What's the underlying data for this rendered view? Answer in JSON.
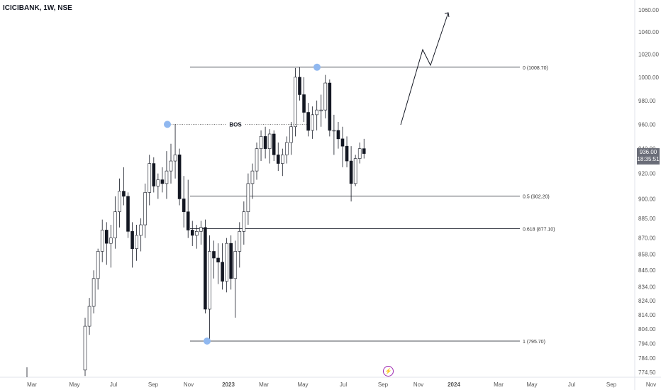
{
  "header": {
    "symbol_title": "ICICIBANK, 1W, NSE"
  },
  "price_badge": {
    "price": "936.00",
    "countdown": "18:35:51"
  },
  "event_icon": "lightning-icon",
  "colors": {
    "candle_up": "#ffffff",
    "candle_down": "#131722",
    "stroke": "#131722",
    "marker": "#90b8f0",
    "axis_text": "#555555",
    "arrow": "#131722"
  },
  "chart_data": {
    "type": "candlestick",
    "title": "ICICIBANK, 1W, NSE",
    "y_scale": "log",
    "ylim": [
      770,
      1070
    ],
    "y_ticks": [
      1060,
      1040,
      1020,
      1000,
      980,
      960,
      940,
      920,
      900,
      885,
      870,
      858,
      846,
      834,
      824,
      814,
      804,
      794,
      784,
      774.5
    ],
    "y_tick_labels": [
      "1060.00",
      "1040.00",
      "1020.00",
      "1000.00",
      "980.00",
      "960.00",
      "940.00",
      "920.00",
      "900.00",
      "885.00",
      "870.00",
      "858.00",
      "846.00",
      "834.00",
      "824.00",
      "814.00",
      "804.00",
      "794.00",
      "784.00",
      "774.50"
    ],
    "x_labels": [
      "Mar",
      "May",
      "Jul",
      "Sep",
      "Nov",
      "2023",
      "Mar",
      "May",
      "Jul",
      "Sep",
      "Nov",
      "2024",
      "Mar",
      "May",
      "Jul",
      "Sep",
      "Nov"
    ],
    "fib_levels": [
      {
        "label": "0 (1008.70)",
        "value": 1008.7
      },
      {
        "label": "0.5 (902.20)",
        "value": 902.2
      },
      {
        "label": "0.618 (877.10)",
        "value": 877.1
      },
      {
        "label": "1 (795.70)",
        "value": 795.7
      }
    ],
    "bos": {
      "label": "BOS",
      "value": 960
    },
    "candles": [
      {
        "o": 776,
        "h": 812,
        "l": 772,
        "c": 806
      },
      {
        "o": 806,
        "h": 826,
        "l": 800,
        "c": 820
      },
      {
        "o": 820,
        "h": 846,
        "l": 815,
        "c": 840
      },
      {
        "o": 840,
        "h": 862,
        "l": 832,
        "c": 860
      },
      {
        "o": 860,
        "h": 884,
        "l": 852,
        "c": 876
      },
      {
        "o": 876,
        "h": 882,
        "l": 850,
        "c": 866
      },
      {
        "o": 866,
        "h": 880,
        "l": 848,
        "c": 870
      },
      {
        "o": 870,
        "h": 902,
        "l": 862,
        "c": 890
      },
      {
        "o": 890,
        "h": 916,
        "l": 878,
        "c": 906
      },
      {
        "o": 906,
        "h": 925,
        "l": 895,
        "c": 902
      },
      {
        "o": 902,
        "h": 905,
        "l": 870,
        "c": 875
      },
      {
        "o": 875,
        "h": 882,
        "l": 848,
        "c": 862
      },
      {
        "o": 862,
        "h": 880,
        "l": 853,
        "c": 872
      },
      {
        "o": 872,
        "h": 885,
        "l": 860,
        "c": 880
      },
      {
        "o": 880,
        "h": 912,
        "l": 870,
        "c": 905
      },
      {
        "o": 905,
        "h": 935,
        "l": 895,
        "c": 928
      },
      {
        "o": 928,
        "h": 933,
        "l": 905,
        "c": 910
      },
      {
        "o": 910,
        "h": 920,
        "l": 900,
        "c": 915
      },
      {
        "o": 915,
        "h": 925,
        "l": 905,
        "c": 912
      },
      {
        "o": 912,
        "h": 938,
        "l": 900,
        "c": 922
      },
      {
        "o": 922,
        "h": 944,
        "l": 912,
        "c": 930
      },
      {
        "o": 930,
        "h": 960,
        "l": 916,
        "c": 935
      },
      {
        "o": 935,
        "h": 940,
        "l": 895,
        "c": 900
      },
      {
        "o": 900,
        "h": 918,
        "l": 878,
        "c": 890
      },
      {
        "o": 890,
        "h": 915,
        "l": 870,
        "c": 876
      },
      {
        "o": 876,
        "h": 883,
        "l": 864,
        "c": 872
      },
      {
        "o": 872,
        "h": 880,
        "l": 862,
        "c": 875
      },
      {
        "o": 875,
        "h": 883,
        "l": 865,
        "c": 878
      },
      {
        "o": 878,
        "h": 884,
        "l": 815,
        "c": 818
      },
      {
        "o": 818,
        "h": 872,
        "l": 795.7,
        "c": 860
      },
      {
        "o": 860,
        "h": 868,
        "l": 840,
        "c": 855
      },
      {
        "o": 855,
        "h": 866,
        "l": 836,
        "c": 852
      },
      {
        "o": 852,
        "h": 866,
        "l": 832,
        "c": 838
      },
      {
        "o": 838,
        "h": 870,
        "l": 830,
        "c": 866
      },
      {
        "o": 866,
        "h": 872,
        "l": 832,
        "c": 840
      },
      {
        "o": 840,
        "h": 868,
        "l": 812,
        "c": 860
      },
      {
        "o": 860,
        "h": 882,
        "l": 848,
        "c": 875
      },
      {
        "o": 875,
        "h": 898,
        "l": 865,
        "c": 890
      },
      {
        "o": 890,
        "h": 920,
        "l": 880,
        "c": 912
      },
      {
        "o": 912,
        "h": 928,
        "l": 900,
        "c": 922
      },
      {
        "o": 922,
        "h": 945,
        "l": 915,
        "c": 940
      },
      {
        "o": 940,
        "h": 955,
        "l": 930,
        "c": 950
      },
      {
        "o": 950,
        "h": 958,
        "l": 932,
        "c": 940
      },
      {
        "o": 940,
        "h": 956,
        "l": 928,
        "c": 952
      },
      {
        "o": 952,
        "h": 955,
        "l": 930,
        "c": 935
      },
      {
        "o": 935,
        "h": 945,
        "l": 922,
        "c": 928
      },
      {
        "o": 928,
        "h": 940,
        "l": 918,
        "c": 935
      },
      {
        "o": 935,
        "h": 950,
        "l": 928,
        "c": 945
      },
      {
        "o": 945,
        "h": 962,
        "l": 935,
        "c": 958
      },
      {
        "o": 958,
        "h": 1008,
        "l": 950,
        "c": 1000
      },
      {
        "o": 1000,
        "h": 1008.7,
        "l": 980,
        "c": 985
      },
      {
        "o": 985,
        "h": 1000,
        "l": 962,
        "c": 970
      },
      {
        "o": 970,
        "h": 978,
        "l": 950,
        "c": 955
      },
      {
        "o": 955,
        "h": 975,
        "l": 948,
        "c": 968
      },
      {
        "o": 968,
        "h": 980,
        "l": 955,
        "c": 972
      },
      {
        "o": 972,
        "h": 985,
        "l": 958,
        "c": 972
      },
      {
        "o": 972,
        "h": 1002,
        "l": 965,
        "c": 995
      },
      {
        "o": 995,
        "h": 998,
        "l": 950,
        "c": 955
      },
      {
        "o": 955,
        "h": 968,
        "l": 935,
        "c": 955
      },
      {
        "o": 955,
        "h": 962,
        "l": 940,
        "c": 948
      },
      {
        "o": 948,
        "h": 958,
        "l": 925,
        "c": 942
      },
      {
        "o": 942,
        "h": 950,
        "l": 925,
        "c": 930
      },
      {
        "o": 930,
        "h": 942,
        "l": 898,
        "c": 912
      },
      {
        "o": 912,
        "h": 935,
        "l": 910,
        "c": 932
      },
      {
        "o": 932,
        "h": 945,
        "l": 928,
        "c": 940
      },
      {
        "o": 940,
        "h": 948,
        "l": 932,
        "c": 936
      }
    ]
  }
}
